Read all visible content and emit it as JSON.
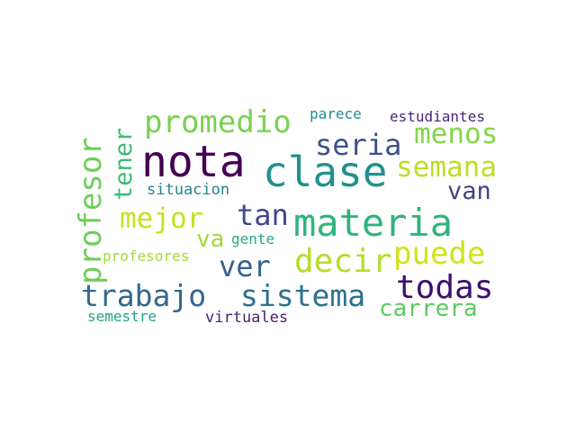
{
  "words": [
    {
      "text": "nota",
      "color": "#440154"
    },
    {
      "text": "clase",
      "color": "#21918c"
    },
    {
      "text": "materia",
      "color": "#2fb47c"
    },
    {
      "text": "trabajo",
      "color": "#31688e"
    },
    {
      "text": "sistema",
      "color": "#2c728e"
    },
    {
      "text": "todas",
      "color": "#3b0f70"
    },
    {
      "text": "profesor",
      "color": "#6ece58"
    },
    {
      "text": "promedio",
      "color": "#7ad151"
    },
    {
      "text": "decir",
      "color": "#b5de2b"
    },
    {
      "text": "puede",
      "color": "#d2e21b"
    },
    {
      "text": "mejor",
      "color": "#c8e020"
    },
    {
      "text": "seria",
      "color": "#3b528b"
    },
    {
      "text": "menos",
      "color": "#86d549"
    },
    {
      "text": "semana",
      "color": "#bddf26"
    },
    {
      "text": "tan",
      "color": "#3e4989"
    },
    {
      "text": "ver",
      "color": "#33638d"
    },
    {
      "text": "carrera",
      "color": "#5ec962"
    },
    {
      "text": "tener",
      "color": "#3dbc74"
    },
    {
      "text": "van",
      "color": "#414487"
    },
    {
      "text": "va",
      "color": "#a0da39"
    },
    {
      "text": "situacion",
      "color": "#26828e"
    },
    {
      "text": "parece",
      "color": "#228c8d"
    },
    {
      "text": "estudiantes",
      "color": "#482878"
    },
    {
      "text": "gente",
      "color": "#25ac82"
    },
    {
      "text": "profesores",
      "color": "#a2da37"
    },
    {
      "text": "semestre",
      "color": "#20a386"
    },
    {
      "text": "virtuales",
      "color": "#481f70"
    }
  ]
}
